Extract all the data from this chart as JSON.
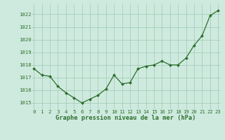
{
  "hours": [
    0,
    1,
    2,
    3,
    4,
    5,
    6,
    7,
    8,
    9,
    10,
    11,
    12,
    13,
    14,
    15,
    16,
    17,
    18,
    19,
    20,
    21,
    22,
    23
  ],
  "pressure": [
    1017.7,
    1017.2,
    1017.1,
    1016.3,
    1015.8,
    1015.4,
    1015.0,
    1015.3,
    1015.6,
    1016.1,
    1017.2,
    1016.5,
    1016.6,
    1017.7,
    1017.9,
    1018.0,
    1018.3,
    1018.0,
    1018.0,
    1018.55,
    1019.55,
    1020.3,
    1021.9,
    1022.3
  ],
  "line_color": "#2d6e2d",
  "marker_color": "#2d6e2d",
  "bg_color": "#ceeade",
  "grid_color": "#9ec8b4",
  "xlabel": "Graphe pression niveau de la mer (hPa)",
  "xlabel_color": "#2d6e2d",
  "tick_color": "#2d6e2d",
  "ylim_min": 1014.5,
  "ylim_max": 1022.8,
  "yticks": [
    1015,
    1016,
    1017,
    1018,
    1019,
    1020,
    1021,
    1022
  ],
  "xlim_min": -0.3,
  "xlim_max": 23.3,
  "tick_fontsize": 5.2,
  "xlabel_fontsize": 6.2,
  "linewidth": 0.9,
  "markersize": 2.0
}
